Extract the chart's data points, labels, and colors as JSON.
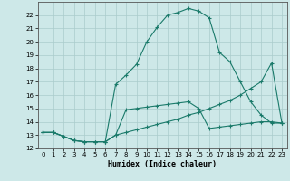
{
  "xlabel": "Humidex (Indice chaleur)",
  "bg_color": "#cde8e8",
  "grid_color": "#aacccc",
  "line_color": "#1a7a6a",
  "xlim": [
    -0.5,
    23.5
  ],
  "ylim": [
    12,
    23.0
  ],
  "xticks": [
    0,
    1,
    2,
    3,
    4,
    5,
    6,
    7,
    8,
    9,
    10,
    11,
    12,
    13,
    14,
    15,
    16,
    17,
    18,
    19,
    20,
    21,
    22,
    23
  ],
  "yticks": [
    12,
    13,
    14,
    15,
    16,
    17,
    18,
    19,
    20,
    21,
    22
  ],
  "line1_x": [
    0,
    1,
    2,
    3,
    4,
    5,
    6,
    7,
    8,
    9,
    10,
    11,
    12,
    13,
    14,
    15,
    16,
    17,
    18,
    19,
    20,
    21,
    22,
    23
  ],
  "line1_y": [
    13.2,
    13.2,
    12.9,
    12.6,
    12.5,
    12.5,
    12.5,
    13.0,
    13.2,
    13.4,
    13.6,
    13.8,
    14.0,
    14.2,
    14.5,
    14.7,
    15.0,
    15.3,
    15.6,
    16.0,
    16.5,
    17.0,
    18.4,
    13.9
  ],
  "line2_x": [
    0,
    1,
    2,
    3,
    4,
    5,
    6,
    7,
    8,
    9,
    10,
    11,
    12,
    13,
    14,
    15,
    16,
    17,
    18,
    19,
    20,
    21,
    22,
    23
  ],
  "line2_y": [
    13.2,
    13.2,
    12.9,
    12.6,
    12.5,
    12.5,
    12.5,
    16.8,
    17.5,
    18.3,
    20.0,
    21.1,
    22.0,
    22.2,
    22.5,
    22.3,
    21.8,
    19.2,
    18.5,
    17.0,
    15.5,
    14.5,
    13.9,
    13.9
  ],
  "line3_x": [
    0,
    1,
    2,
    3,
    4,
    5,
    6,
    7,
    8,
    9,
    10,
    11,
    12,
    13,
    14,
    15,
    16,
    17,
    18,
    19,
    20,
    21,
    22,
    23
  ],
  "line3_y": [
    13.2,
    13.2,
    12.9,
    12.6,
    12.5,
    12.5,
    12.5,
    13.0,
    14.9,
    15.0,
    15.1,
    15.2,
    15.3,
    15.4,
    15.5,
    15.0,
    13.5,
    13.6,
    13.7,
    13.8,
    13.9,
    14.0,
    14.0,
    13.9
  ]
}
